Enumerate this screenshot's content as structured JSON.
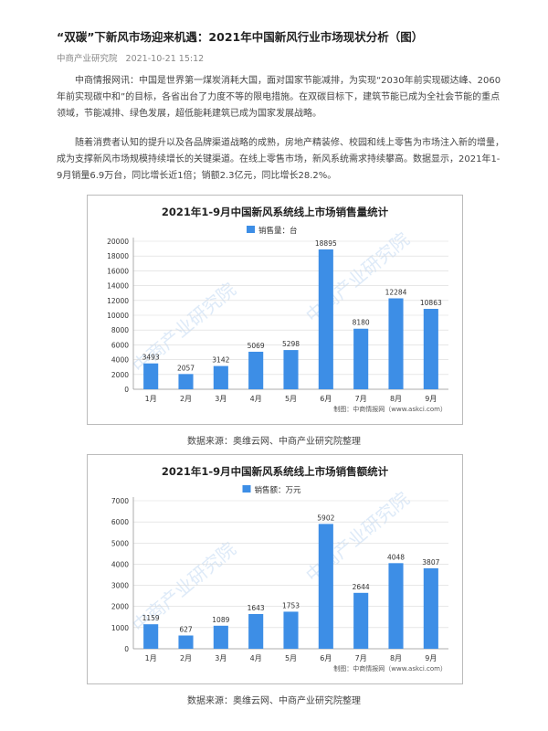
{
  "article": {
    "title": "“双碳”下新风市场迎来机遇：2021年中国新风行业市场现状分析（图）",
    "source": "中商产业研究院",
    "date": "2021-10-21 15:12",
    "paragraphs": [
      "中商情报网讯：中国是世界第一煤炭消耗大国，面对国家节能减排，为实现“2030年前实现碳达峰、2060年前实现碳中和”的目标，各省出台了力度不等的限电措施。在双碳目标下，建筑节能已成为全社会节能的重点领域，节能减排、绿色发展，超低能耗建筑已成为国家发展战略。",
      "随着消费者认知的提升以及各品牌渠道战略的成熟，房地产精装修、校园和线上零售为市场注入新的增量，成为支撑新风市场规模持续增长的关键渠道。在线上零售市场，新风系统需求持续攀高。数据显示，2021年1-9月销量6.9万台，同比增长近1倍；销额2.3亿元，同比增长28.2%。"
    ]
  },
  "colors": {
    "bar": "#3d8ee6",
    "grid": "#d9d9d9",
    "axis": "#999999",
    "watermark": "#d6e6f7"
  },
  "chart_data": [
    {
      "type": "bar",
      "title": "2021年1-9月中国新风系统线上市场销售量统计",
      "legend": "销售量：台",
      "legend_position": "top-center",
      "categories": [
        "1月",
        "2月",
        "3月",
        "4月",
        "5月",
        "6月",
        "7月",
        "8月",
        "9月"
      ],
      "values": [
        3493,
        2057,
        3142,
        5069,
        5298,
        18895,
        8180,
        12284,
        10863
      ],
      "ylim": [
        0,
        20000
      ],
      "yticks": [
        0,
        2000,
        4000,
        6000,
        8000,
        10000,
        12000,
        14000,
        16000,
        18000,
        20000
      ],
      "grid": true,
      "credit": "制图：中商情报网（www.askci.com）",
      "caption": "数据来源：奥维云网、中商产业研究院整理"
    },
    {
      "type": "bar",
      "title": "2021年1-9月中国新风系统线上市场销售额统计",
      "legend": "销售额：万元",
      "legend_position": "top-center",
      "categories": [
        "1月",
        "2月",
        "3月",
        "4月",
        "5月",
        "6月",
        "7月",
        "8月",
        "9月"
      ],
      "values": [
        1159,
        627,
        1089,
        1643,
        1753,
        5902,
        2644,
        4048,
        3807
      ],
      "ylim": [
        0,
        7000
      ],
      "yticks": [
        0,
        1000,
        2000,
        3000,
        4000,
        5000,
        6000,
        7000
      ],
      "grid": true,
      "credit": "制图：中商情报网（www.askci.com）",
      "caption": "数据来源：奥维云网、中商产业研究院整理"
    }
  ]
}
